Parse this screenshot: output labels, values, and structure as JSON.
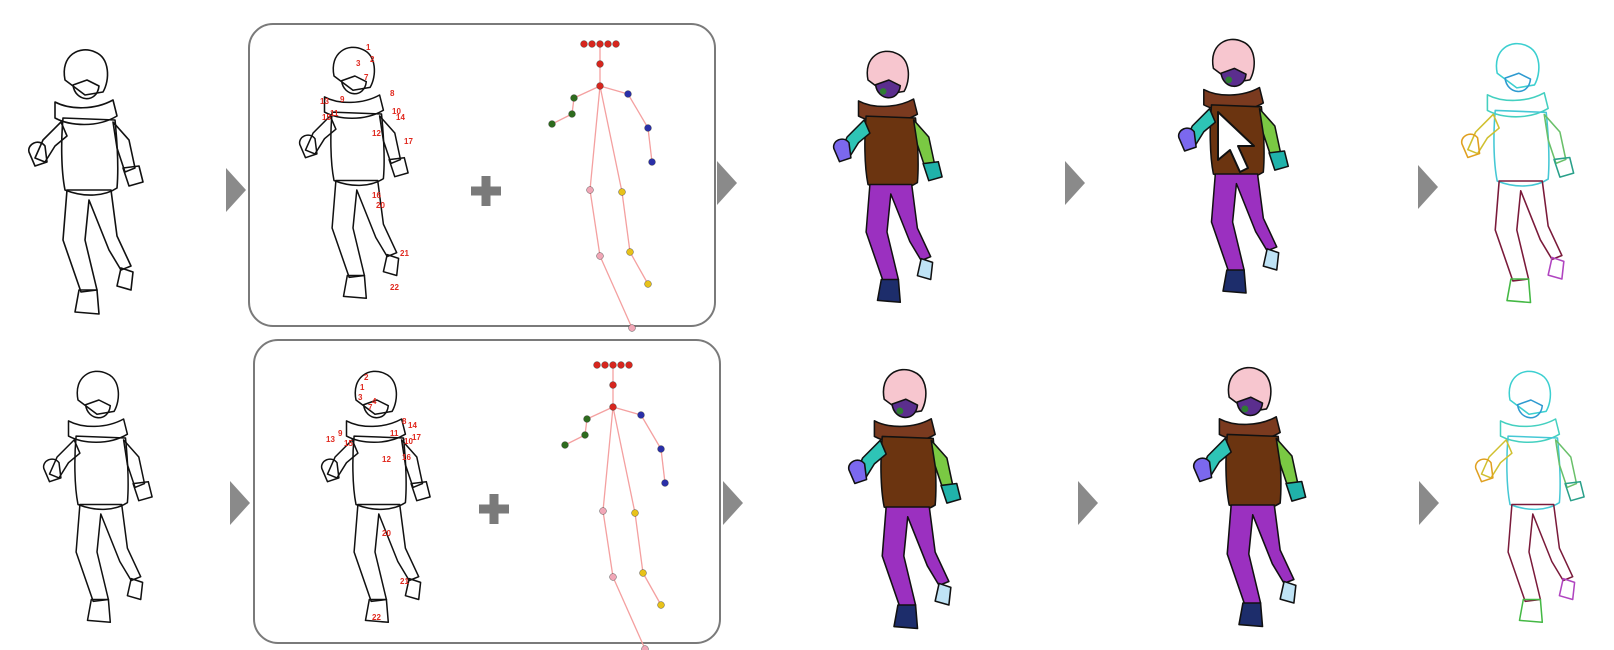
{
  "palette": {
    "line": "#111111",
    "arrow": "#8a8a8a",
    "box_border": "#7a7a7a",
    "plus": "#7a7a7a",
    "keypoint_label": "#e0281e",
    "bone": "#f4a0a0",
    "hair": "#f7c6cf",
    "face": "#5b2e8e",
    "eye": "#2e7d32",
    "scarf": "#7a3a1f",
    "shirt": "#6b3410",
    "arm_left": "#2ec4b6",
    "arm_left_alt": "#6fa8f5",
    "arm_right": "#7ac943",
    "arm_right_alt": "#2f5fd0",
    "hand_left": "#7b68ee",
    "hand_right": "#20b2aa",
    "pants": "#9b30c0",
    "pants_back": "#e07070",
    "shoe_dark": "#1d2d6b",
    "shoe_light": "#bfe3f5",
    "cursor": "#ffffff"
  },
  "keypoint_colors": {
    "head": "#d7261e",
    "left_arm": "#2e6b1e",
    "right_arm": "#2a2fa8",
    "left_leg": "#f1a7b7",
    "right_leg": "#e8c21a"
  },
  "rows": [
    {
      "labels": [
        "1",
        "2",
        "3",
        "7",
        "8",
        "9",
        "10",
        "11",
        "12",
        "13",
        "14",
        "15",
        "16",
        "17",
        "20",
        "21",
        "22"
      ]
    },
    {
      "labels": [
        "1",
        "2",
        "3",
        "4",
        "7",
        "8",
        "9",
        "10",
        "11",
        "12",
        "13",
        "14",
        "15",
        "16",
        "17",
        "20",
        "21",
        "22"
      ]
    }
  ],
  "icons": [
    "arrow-right-icon",
    "plus-icon",
    "cursor-arrow-icon"
  ]
}
